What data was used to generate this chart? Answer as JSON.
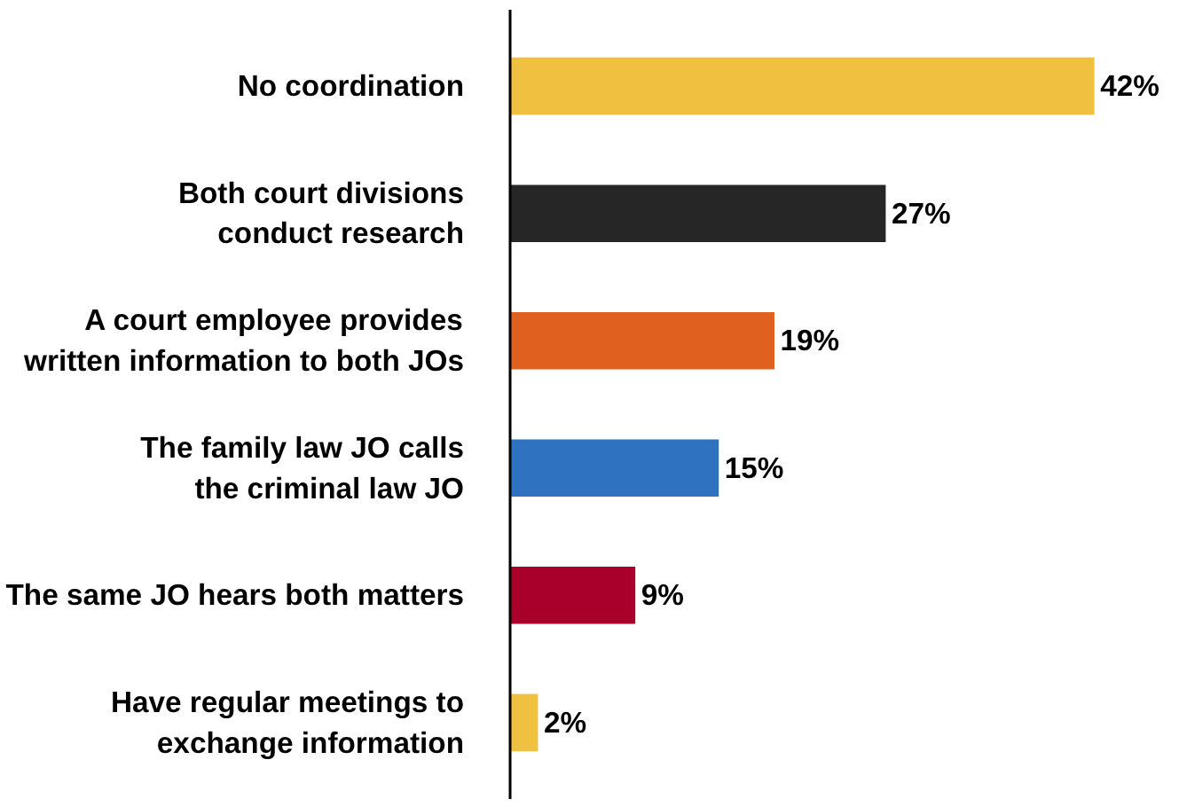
{
  "chart_data": {
    "type": "bar",
    "orientation": "horizontal",
    "categories": [
      "No coordination",
      "Both court divisions\nconduct research",
      "A court employee provides\nwritten information to both JOs",
      "The family law JO calls\nthe criminal law JO",
      "The same JO hears both matters",
      "Have regular meetings to\nexchange information"
    ],
    "values": [
      42,
      27,
      19,
      15,
      9,
      2
    ],
    "colors": [
      "#f0c040",
      "#262626",
      "#e06020",
      "#2e72c0",
      "#a8002a",
      "#f0c040"
    ],
    "value_labels": [
      "42%",
      "27%",
      "19%",
      "15%",
      "9%",
      "2%"
    ],
    "grid": false
  }
}
